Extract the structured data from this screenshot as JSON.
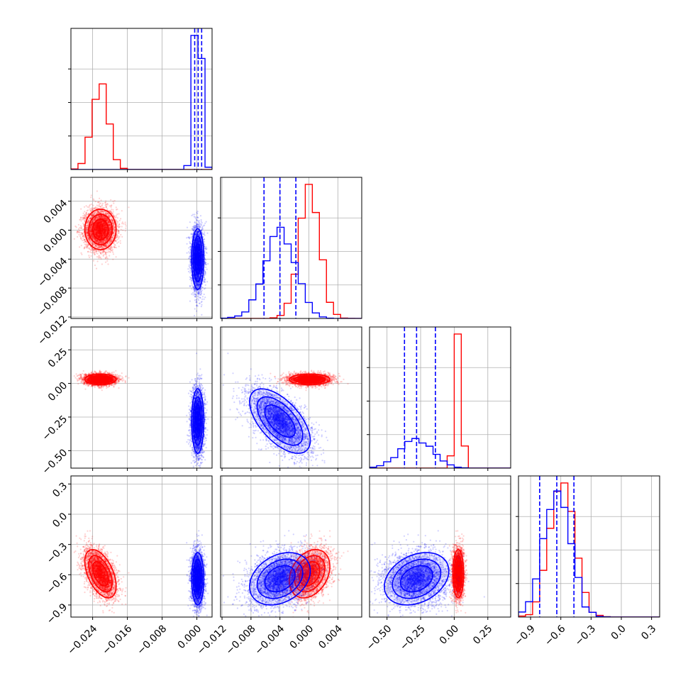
{
  "colors": {
    "red": "#ff0000",
    "blue": "#0000ff",
    "grid": "#b0b0b0"
  },
  "chart_data": {
    "type": "corner",
    "grid": true,
    "series": [
      {
        "name": "",
        "color": "#ff0000",
        "points": 5000
      },
      {
        "name": "",
        "color": "#0000ff",
        "points": 5000
      }
    ],
    "parameters": [
      {
        "range": [
          -0.029,
          0.0035
        ],
        "ticks": [
          -0.024,
          -0.016,
          -0.008,
          0.0
        ],
        "tick_labels": [
          "−0.024",
          "−0.016",
          "−0.008",
          "0.000"
        ]
      },
      {
        "range": [
          -0.0122,
          0.0073
        ],
        "ticks": [
          -0.012,
          -0.008,
          -0.004,
          0.0,
          0.004
        ],
        "tick_labels": [
          "−0.012",
          "−0.008",
          "−0.004",
          "0.000",
          "0.004"
        ]
      },
      {
        "range": [
          -0.63,
          0.42
        ],
        "ticks": [
          -0.5,
          -0.25,
          0.0,
          0.25
        ],
        "tick_labels": [
          "−0.50",
          "−0.25",
          "0.00",
          "0.25"
        ]
      },
      {
        "range": [
          -1.02,
          0.38
        ],
        "ticks": [
          -0.9,
          -0.6,
          -0.3,
          0.0,
          0.3
        ],
        "tick_labels": [
          "−0.9",
          "−0.6",
          "−0.3",
          "0.0",
          "0.3"
        ]
      }
    ],
    "blue_quantiles": [
      [
        -0.0005,
        0.0003,
        0.0011
      ],
      [
        -0.0062,
        -0.004,
        -0.0018
      ],
      [
        -0.37,
        -0.28,
        -0.14
      ],
      [
        -0.81,
        -0.64,
        -0.47
      ]
    ],
    "red": {
      "mean": [
        -0.0222,
        0.0001,
        0.03,
        -0.59
      ],
      "std": [
        0.0018,
        0.0014,
        0.02,
        0.12
      ],
      "corr": {
        "0-3": -0.5,
        "1-3": 0.3
      }
    },
    "blue": {
      "mean": [
        0.0002,
        -0.004,
        -0.28,
        -0.64
      ],
      "std": [
        0.0007,
        0.0021,
        0.12,
        0.13
      ],
      "corr": {
        "1-2": -0.6,
        "1-3": 0.3,
        "2-3": 0.3
      }
    }
  }
}
